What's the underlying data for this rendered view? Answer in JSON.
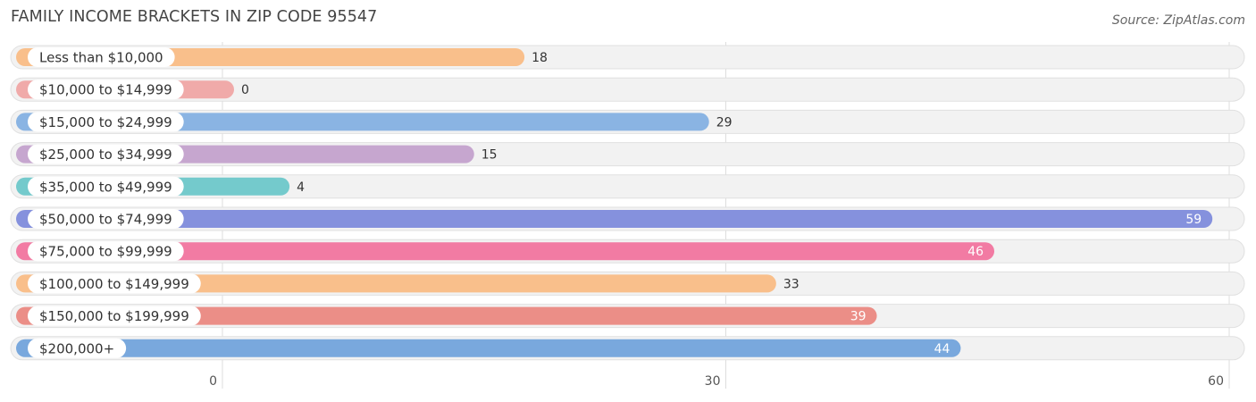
{
  "chart_data": {
    "type": "bar",
    "orientation": "horizontal",
    "title": "FAMILY INCOME BRACKETS IN ZIP CODE 95547",
    "source": "Source: ZipAtlas.com",
    "categories": [
      "Less than $10,000",
      "$10,000 to $14,999",
      "$15,000 to $24,999",
      "$25,000 to $34,999",
      "$35,000 to $49,999",
      "$50,000 to $74,999",
      "$75,000 to $99,999",
      "$100,000 to $149,999",
      "$150,000 to $199,999",
      "$200,000+"
    ],
    "values": [
      18,
      0,
      29,
      15,
      4,
      59,
      46,
      33,
      39,
      44
    ],
    "colors": [
      "#f9bf8b",
      "#f0aaa9",
      "#8ab4e3",
      "#c6a6cf",
      "#74cacc",
      "#8591dd",
      "#f27ba3",
      "#f9bf8b",
      "#eb8e87",
      "#79a8dd"
    ],
    "xlim": [
      0,
      60
    ],
    "xticks": [
      0,
      30,
      60
    ],
    "grid": true
  }
}
